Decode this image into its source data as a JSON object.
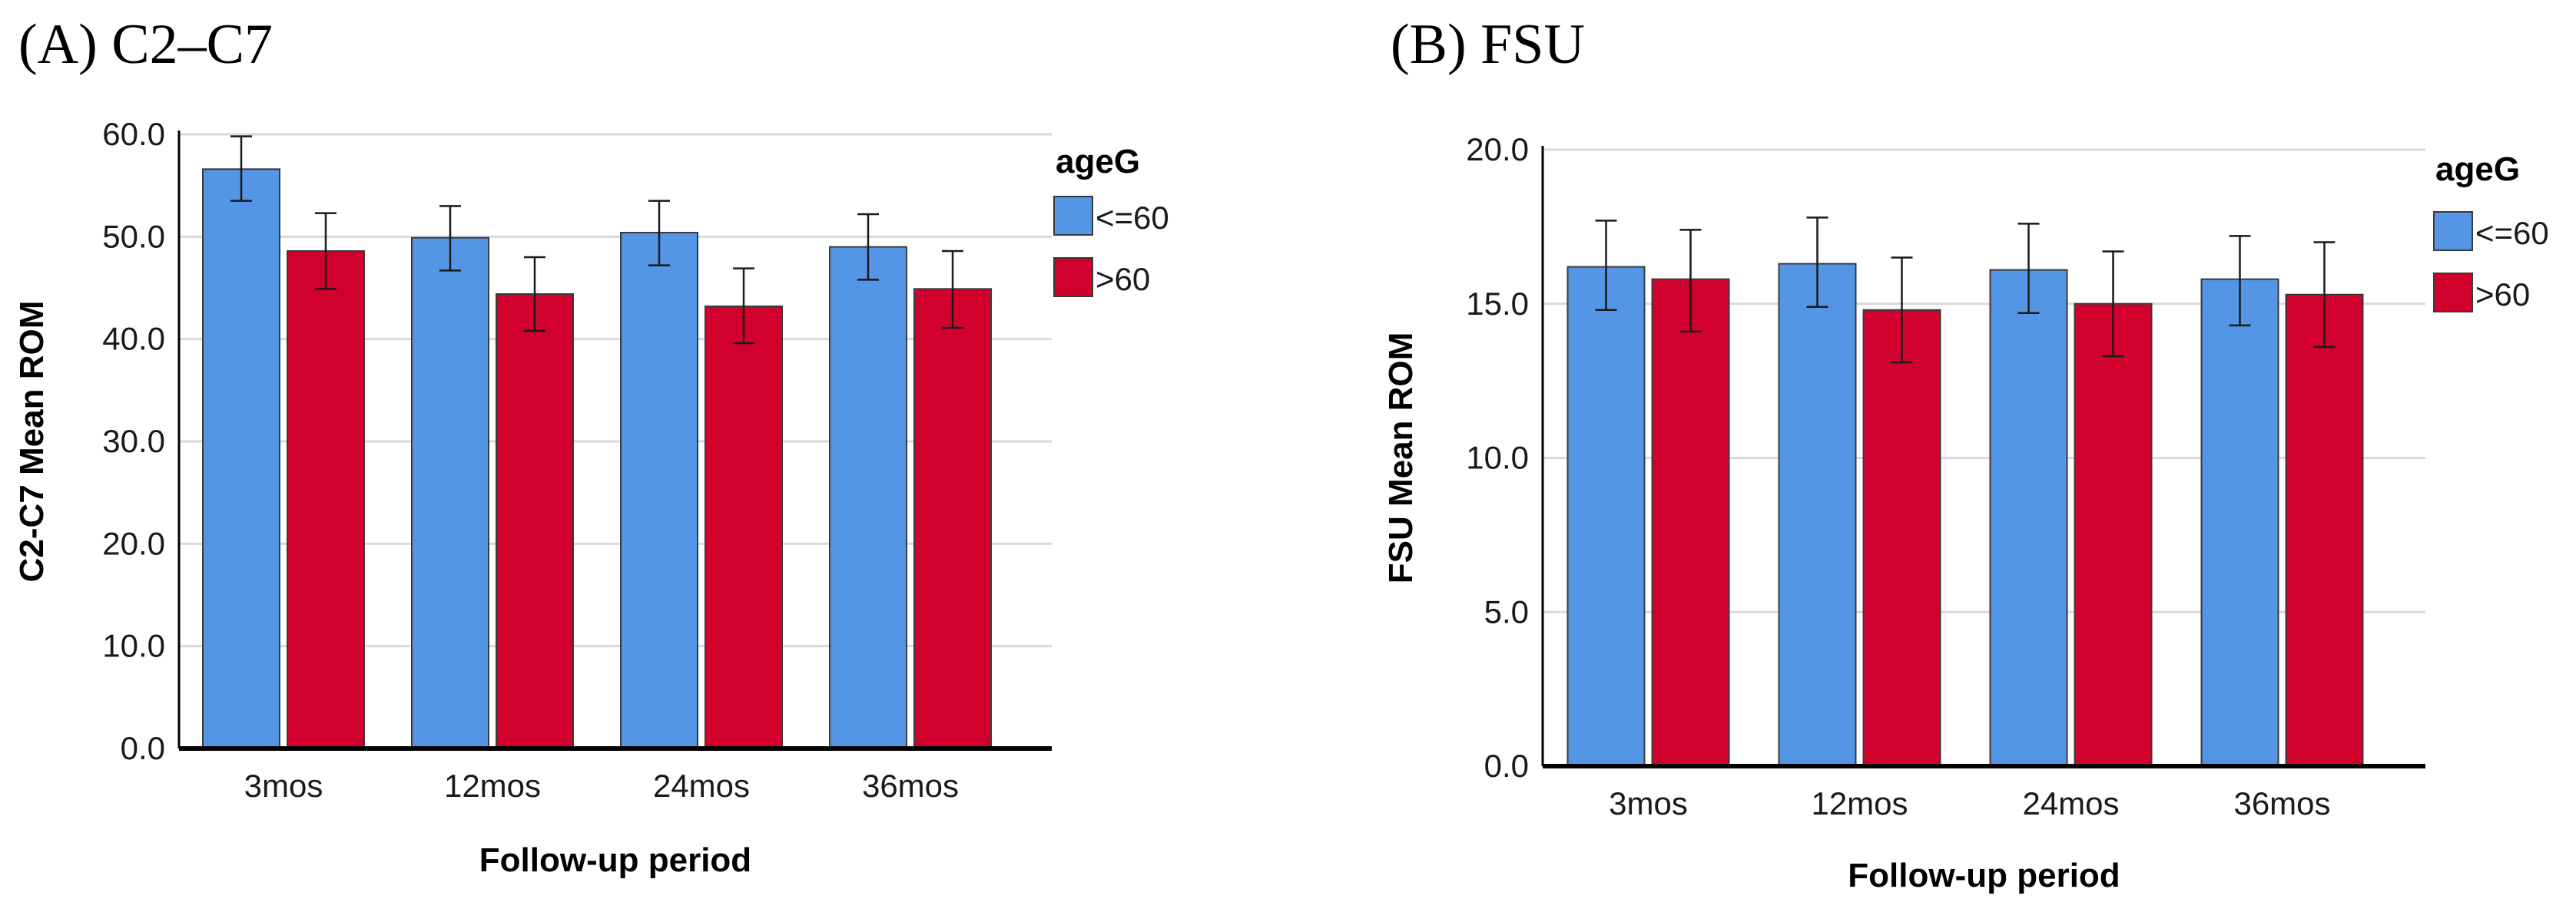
{
  "chart_data": [
    {
      "type": "bar",
      "panel_title": "(A) C2–C7",
      "categories": [
        "3mos",
        "12mos",
        "24mos",
        "36mos"
      ],
      "xlabel": "Follow-up period",
      "ylabel": "C2-C7 Mean ROM",
      "ylim": [
        0,
        60
      ],
      "yticks": [
        "0.0",
        "10.0",
        "20.0",
        "30.0",
        "40.0",
        "50.0",
        "60.0"
      ],
      "grid": true,
      "legend_title": "ageG",
      "legend_position": "top-right",
      "series": [
        {
          "name": "<=60",
          "color": "#5495e5",
          "values": [
            56.6,
            49.9,
            50.4,
            49.0
          ],
          "error_low": [
            53.5,
            46.7,
            47.2,
            45.8
          ],
          "error_high": [
            59.8,
            53.0,
            53.5,
            52.2
          ]
        },
        {
          "name": ">60",
          "color": "#d2002d",
          "values": [
            48.6,
            44.4,
            43.2,
            44.9
          ],
          "error_low": [
            44.9,
            40.8,
            39.6,
            41.1
          ],
          "error_high": [
            52.3,
            48.0,
            46.9,
            48.6
          ]
        }
      ]
    },
    {
      "type": "bar",
      "panel_title": "(B) FSU",
      "categories": [
        "3mos",
        "12mos",
        "24mos",
        "36mos"
      ],
      "xlabel": "Follow-up period",
      "ylabel": "FSU Mean ROM",
      "ylim": [
        0,
        20
      ],
      "yticks": [
        "0.0",
        "5.0",
        "10.0",
        "15.0",
        "20.0"
      ],
      "grid": true,
      "legend_title": "ageG",
      "legend_position": "top-right",
      "series": [
        {
          "name": "<=60",
          "color": "#5495e5",
          "values": [
            16.2,
            16.3,
            16.1,
            15.8
          ],
          "error_low": [
            14.8,
            14.9,
            14.7,
            14.3
          ],
          "error_high": [
            17.7,
            17.8,
            17.6,
            17.2
          ]
        },
        {
          "name": ">60",
          "color": "#d2002d",
          "values": [
            15.8,
            14.8,
            15.0,
            15.3
          ],
          "error_low": [
            14.1,
            13.1,
            13.3,
            13.6
          ],
          "error_high": [
            17.4,
            16.5,
            16.7,
            17.0
          ]
        }
      ]
    }
  ]
}
